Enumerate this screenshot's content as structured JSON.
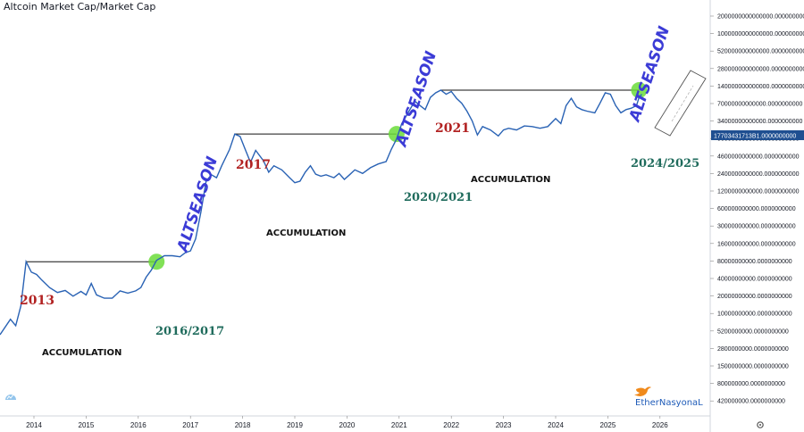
{
  "title": "Altcoin Market Cap/Market Cap",
  "colors": {
    "line": "#2962b4",
    "price_tag": "#1f4f91",
    "year_label": "#b22222",
    "green_label": "#1f6b5c",
    "altseason": "#3b3bd6",
    "circle": "#6bdc3a"
  },
  "price_tag": "17703431713B1.0000000000",
  "brand": "EtherNasyonaL",
  "annotations": {
    "year_2013": "2013",
    "year_2017": "2017",
    "year_2021": "2021",
    "break_2016": "2016/2017",
    "break_2020": "2020/2021",
    "break_2024": "2024/2025",
    "acc_1": "ACCUMULATION",
    "acc_2": "ACCUMULATION",
    "acc_3": "ACCUMULATION",
    "alt_1": "ALTSEASON",
    "alt_2": "ALTSEASON",
    "alt_3": "ALTSEASON"
  },
  "chart_data": {
    "type": "line",
    "title": "Altcoin Market Cap/Market Cap",
    "yscale": "log",
    "x_ticks": [
      "2014",
      "2015",
      "2016",
      "2017",
      "2018",
      "2019",
      "2020",
      "2021",
      "2022",
      "2023",
      "2024",
      "2025",
      "2026"
    ],
    "y_ticks": [
      "2000000000000000.0000000000",
      "1000000000000000.0000000000",
      "520000000000000.0000000000",
      "280000000000000.0000000000",
      "140000000000000.0000000000",
      "70000000000000.0000000000",
      "34000000000000.0000000000",
      "9000000000000.0000000000",
      "4600000000000.0000000000",
      "2400000000000.0000000000",
      "1200000000000.0000000000",
      "600000000000.0000000000",
      "300000000000.0000000000",
      "160000000000.0000000000",
      "80000000000.0000000000",
      "40000000000.0000000000",
      "20000000000.0000000000",
      "10000000000.0000000000",
      "5200000000.0000000000",
      "2800000000.0000000000",
      "1500000000.0000000000",
      "800000000.0000000000",
      "420000000.0000000000"
    ],
    "series": [
      {
        "values": [
          [
            2013.35,
            600000000.0
          ],
          [
            2013.55,
            1200000000.0
          ],
          [
            2013.65,
            900000000.0
          ],
          [
            2013.75,
            2200000000.0
          ],
          [
            2013.85,
            16000000000.0
          ],
          [
            2013.95,
            10000000000.0
          ],
          [
            2014.05,
            9000000000.0
          ],
          [
            2014.15,
            7000000000.0
          ],
          [
            2014.3,
            5000000000.0
          ],
          [
            2014.45,
            4000000000.0
          ],
          [
            2014.6,
            4400000000.0
          ],
          [
            2014.75,
            3400000000.0
          ],
          [
            2014.9,
            4200000000.0
          ],
          [
            2015.0,
            3600000000.0
          ],
          [
            2015.1,
            6000000000.0
          ],
          [
            2015.2,
            3600000000.0
          ],
          [
            2015.35,
            3100000000.0
          ],
          [
            2015.5,
            3100000000.0
          ],
          [
            2015.65,
            4300000000.0
          ],
          [
            2015.8,
            3900000000.0
          ],
          [
            2015.95,
            4300000000.0
          ],
          [
            2016.05,
            5000000000.0
          ],
          [
            2016.15,
            8000000000.0
          ],
          [
            2016.25,
            11000000000.0
          ],
          [
            2016.35,
            17000000000.0
          ],
          [
            2016.5,
            21000000000.0
          ],
          [
            2016.65,
            21000000000.0
          ],
          [
            2016.8,
            20000000000.0
          ],
          [
            2016.9,
            24000000000.0
          ],
          [
            2017.0,
            26000000000.0
          ],
          [
            2017.1,
            45000000000.0
          ],
          [
            2017.2,
            150000000000.0
          ],
          [
            2017.3,
            600000000000.0
          ],
          [
            2017.4,
            800000000000.0
          ],
          [
            2017.5,
            700000000000.0
          ],
          [
            2017.6,
            1200000000000.0
          ],
          [
            2017.75,
            2500000000000.0
          ],
          [
            2017.85,
            5000000000000.0
          ],
          [
            2017.95,
            4500000000000.0
          ],
          [
            2018.05,
            2500000000000.0
          ],
          [
            2018.15,
            1400000000000.0
          ],
          [
            2018.25,
            2400000000000.0
          ],
          [
            2018.4,
            1500000000000.0
          ],
          [
            2018.5,
            900000000000.0
          ],
          [
            2018.6,
            1200000000000.0
          ],
          [
            2018.75,
            1000000000000.0
          ],
          [
            2018.9,
            700000000000.0
          ],
          [
            2019.0,
            560000000000.0
          ],
          [
            2019.1,
            600000000000.0
          ],
          [
            2019.2,
            900000000000.0
          ],
          [
            2019.3,
            1200000000000.0
          ],
          [
            2019.4,
            820000000000.0
          ],
          [
            2019.5,
            750000000000.0
          ],
          [
            2019.6,
            800000000000.0
          ],
          [
            2019.75,
            700000000000.0
          ],
          [
            2019.85,
            850000000000.0
          ],
          [
            2019.95,
            650000000000.0
          ],
          [
            2020.05,
            800000000000.0
          ],
          [
            2020.15,
            1000000000000.0
          ],
          [
            2020.3,
            850000000000.0
          ],
          [
            2020.45,
            1100000000000.0
          ],
          [
            2020.6,
            1300000000000.0
          ],
          [
            2020.75,
            1450000000000.0
          ],
          [
            2020.85,
            2500000000000.0
          ],
          [
            2020.95,
            4000000000000.0
          ],
          [
            2021.05,
            8000000000000.0
          ],
          [
            2021.15,
            12000000000000.0
          ],
          [
            2021.3,
            22000000000000.0
          ],
          [
            2021.4,
            18000000000000.0
          ],
          [
            2021.5,
            15000000000000.0
          ],
          [
            2021.6,
            26000000000000.0
          ],
          [
            2021.7,
            32000000000000.0
          ],
          [
            2021.8,
            36000000000000.0
          ],
          [
            2021.9,
            30000000000000.0
          ],
          [
            2022.0,
            34000000000000.0
          ],
          [
            2022.1,
            25000000000000.0
          ],
          [
            2022.2,
            20000000000000.0
          ],
          [
            2022.3,
            14000000000000.0
          ],
          [
            2022.4,
            9000000000000.0
          ],
          [
            2022.5,
            4800000000000.0
          ],
          [
            2022.6,
            7000000000000.0
          ],
          [
            2022.75,
            6000000000000.0
          ],
          [
            2022.9,
            4600000000000.0
          ],
          [
            2023.0,
            6000000000000.0
          ],
          [
            2023.1,
            6500000000000.0
          ],
          [
            2023.25,
            6000000000000.0
          ],
          [
            2023.4,
            7200000000000.0
          ],
          [
            2023.55,
            7000000000000.0
          ],
          [
            2023.7,
            6500000000000.0
          ],
          [
            2023.85,
            7000000000000.0
          ],
          [
            2024.0,
            10000000000000.0
          ],
          [
            2024.1,
            8000000000000.0
          ],
          [
            2024.2,
            18000000000000.0
          ],
          [
            2024.3,
            25000000000000.0
          ],
          [
            2024.4,
            17000000000000.0
          ],
          [
            2024.5,
            15000000000000.0
          ],
          [
            2024.6,
            14000000000000.0
          ],
          [
            2024.75,
            13000000000000.0
          ],
          [
            2024.85,
            20000000000000.0
          ],
          [
            2024.95,
            32000000000000.0
          ],
          [
            2025.05,
            30000000000000.0
          ],
          [
            2025.15,
            18000000000000.0
          ],
          [
            2025.25,
            13000000000000.0
          ],
          [
            2025.35,
            15000000000000.0
          ],
          [
            2025.45,
            16000000000000.0
          ],
          [
            2025.55,
            18000000000000.0
          ],
          [
            2025.6,
            26000000000000.0
          ],
          [
            2025.65,
            30000000000000.0
          ]
        ]
      }
    ]
  }
}
